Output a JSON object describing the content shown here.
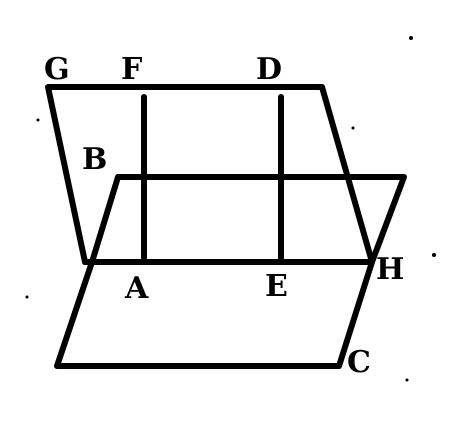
{
  "diagram": {
    "labels": {
      "g": "G",
      "f": "F",
      "d": "D",
      "b": "B",
      "a": "A",
      "e": "E",
      "h": "H",
      "c": "C"
    },
    "ink_color": "#000000",
    "paper_color": "#ffffff"
  }
}
